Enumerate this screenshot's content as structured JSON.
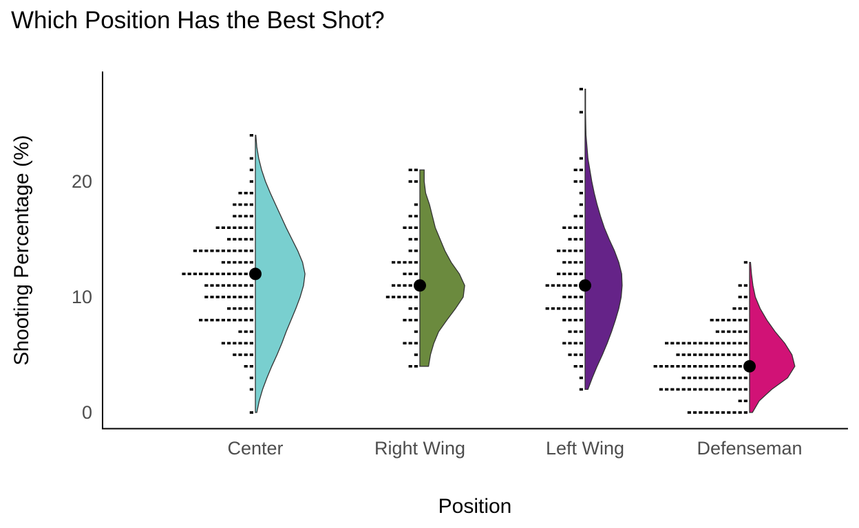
{
  "chart_data": {
    "type": "violin",
    "title": "Which Position Has the Best Shot?",
    "xlabel": "Position",
    "ylabel": "Shooting Percentage (%)",
    "ylim": [
      -1.3,
      29.5
    ],
    "yticks": [
      0,
      10,
      20
    ],
    "grid": false,
    "legend": "none",
    "categories": [
      "Center",
      "Right Wing",
      "Left Wing",
      "Defenseman"
    ],
    "series": [
      {
        "category": "Center",
        "color": "#79CFCF",
        "median": 12.0,
        "range": [
          0,
          24
        ],
        "density": [
          [
            0,
            0.03
          ],
          [
            1,
            0.08
          ],
          [
            2,
            0.15
          ],
          [
            3,
            0.24
          ],
          [
            4,
            0.34
          ],
          [
            5,
            0.45
          ],
          [
            6,
            0.55
          ],
          [
            7,
            0.64
          ],
          [
            8,
            0.74
          ],
          [
            9,
            0.84
          ],
          [
            10,
            0.93
          ],
          [
            11,
            1.0
          ],
          [
            12,
            1.03
          ],
          [
            13,
            0.98
          ],
          [
            14,
            0.88
          ],
          [
            15,
            0.76
          ],
          [
            16,
            0.64
          ],
          [
            17,
            0.53
          ],
          [
            18,
            0.42
          ],
          [
            19,
            0.31
          ],
          [
            20,
            0.21
          ],
          [
            21,
            0.13
          ],
          [
            22,
            0.07
          ],
          [
            23,
            0.03
          ],
          [
            24,
            0.01
          ]
        ],
        "dots": [
          [
            0,
            1
          ],
          [
            2,
            1
          ],
          [
            3,
            1
          ],
          [
            4,
            2
          ],
          [
            5,
            4
          ],
          [
            6,
            6
          ],
          [
            7,
            3
          ],
          [
            8,
            10
          ],
          [
            9,
            5
          ],
          [
            10,
            9
          ],
          [
            11,
            9
          ],
          [
            12,
            13
          ],
          [
            13,
            6
          ],
          [
            14,
            11
          ],
          [
            15,
            5
          ],
          [
            16,
            7
          ],
          [
            17,
            4
          ],
          [
            18,
            4
          ],
          [
            19,
            3
          ],
          [
            20,
            1
          ],
          [
            21,
            1
          ],
          [
            22,
            1
          ],
          [
            24,
            1
          ]
        ]
      },
      {
        "category": "Right Wing",
        "color": "#6B8A3E",
        "median": 11.0,
        "range": [
          4,
          21
        ],
        "density": [
          [
            4,
            0.18
          ],
          [
            5,
            0.22
          ],
          [
            6,
            0.29
          ],
          [
            7,
            0.39
          ],
          [
            8,
            0.56
          ],
          [
            9,
            0.74
          ],
          [
            10,
            0.9
          ],
          [
            11,
            0.93
          ],
          [
            12,
            0.82
          ],
          [
            13,
            0.65
          ],
          [
            14,
            0.52
          ],
          [
            15,
            0.42
          ],
          [
            16,
            0.32
          ],
          [
            17,
            0.26
          ],
          [
            18,
            0.2
          ],
          [
            19,
            0.12
          ],
          [
            20,
            0.09
          ],
          [
            21,
            0.09
          ]
        ],
        "dots": [
          [
            4,
            2
          ],
          [
            5,
            1
          ],
          [
            6,
            3
          ],
          [
            7,
            1
          ],
          [
            8,
            3
          ],
          [
            9,
            2
          ],
          [
            10,
            6
          ],
          [
            11,
            5
          ],
          [
            12,
            3
          ],
          [
            13,
            5
          ],
          [
            14,
            2
          ],
          [
            15,
            2
          ],
          [
            16,
            3
          ],
          [
            17,
            2
          ],
          [
            18,
            1
          ],
          [
            20,
            2
          ],
          [
            21,
            2
          ]
        ]
      },
      {
        "category": "Left Wing",
        "color": "#652388",
        "median": 11.0,
        "range": [
          2,
          28
        ],
        "density": [
          [
            2,
            0.06
          ],
          [
            3,
            0.15
          ],
          [
            4,
            0.25
          ],
          [
            5,
            0.36
          ],
          [
            6,
            0.46
          ],
          [
            7,
            0.55
          ],
          [
            8,
            0.63
          ],
          [
            9,
            0.7
          ],
          [
            10,
            0.75
          ],
          [
            11,
            0.77
          ],
          [
            12,
            0.76
          ],
          [
            13,
            0.7
          ],
          [
            14,
            0.61
          ],
          [
            15,
            0.5
          ],
          [
            16,
            0.4
          ],
          [
            17,
            0.32
          ],
          [
            18,
            0.25
          ],
          [
            19,
            0.19
          ],
          [
            20,
            0.14
          ],
          [
            21,
            0.1
          ],
          [
            22,
            0.06
          ],
          [
            23,
            0.04
          ],
          [
            24,
            0.02
          ],
          [
            25,
            0.015
          ],
          [
            26,
            0.01
          ],
          [
            27,
            0.01
          ],
          [
            28,
            0.01
          ]
        ],
        "dots": [
          [
            2,
            1
          ],
          [
            3,
            1
          ],
          [
            4,
            2
          ],
          [
            5,
            3
          ],
          [
            6,
            4
          ],
          [
            7,
            3
          ],
          [
            8,
            4
          ],
          [
            9,
            7
          ],
          [
            10,
            4
          ],
          [
            11,
            7
          ],
          [
            12,
            5
          ],
          [
            13,
            4
          ],
          [
            14,
            5
          ],
          [
            15,
            3
          ],
          [
            16,
            4
          ],
          [
            17,
            2
          ],
          [
            18,
            1
          ],
          [
            19,
            1
          ],
          [
            20,
            2
          ],
          [
            21,
            2
          ],
          [
            22,
            1
          ],
          [
            26,
            1
          ],
          [
            28,
            1
          ]
        ]
      },
      {
        "category": "Defenseman",
        "color": "#D11276",
        "median": 4.0,
        "range": [
          0,
          13
        ],
        "density": [
          [
            0,
            0.06
          ],
          [
            1,
            0.2
          ],
          [
            2,
            0.46
          ],
          [
            3,
            0.79
          ],
          [
            4,
            0.94
          ],
          [
            5,
            0.88
          ],
          [
            6,
            0.73
          ],
          [
            7,
            0.53
          ],
          [
            8,
            0.36
          ],
          [
            9,
            0.22
          ],
          [
            10,
            0.12
          ],
          [
            11,
            0.07
          ],
          [
            12,
            0.04
          ],
          [
            13,
            0.02
          ]
        ],
        "dots": [
          [
            0,
            11
          ],
          [
            1,
            2
          ],
          [
            2,
            16
          ],
          [
            3,
            12
          ],
          [
            4,
            17
          ],
          [
            5,
            13
          ],
          [
            6,
            15
          ],
          [
            7,
            6
          ],
          [
            8,
            7
          ],
          [
            9,
            3
          ],
          [
            10,
            2
          ],
          [
            11,
            2
          ],
          [
            13,
            1
          ]
        ]
      }
    ]
  }
}
